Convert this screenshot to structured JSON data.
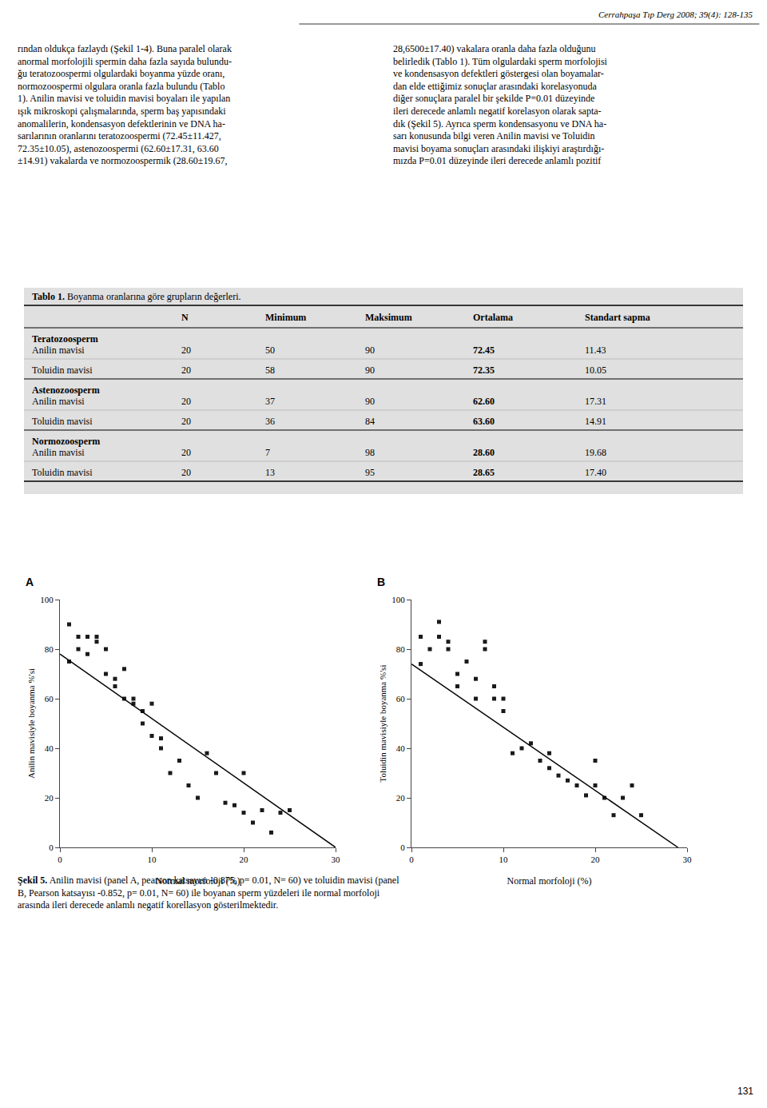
{
  "chart_data": [
    {
      "type": "scatter",
      "title": "A",
      "x_label": "Normal morfoloji (%)",
      "y_label": "Anilin mavisiyle boyanma %'si",
      "xlim": [
        0,
        30
      ],
      "ylim": [
        0,
        100
      ],
      "xticks": [
        0,
        10,
        20,
        30
      ],
      "yticks": [
        0,
        20,
        40,
        60,
        80,
        100
      ],
      "grid": false,
      "series": [
        {
          "type": "scatter",
          "marker": "square",
          "color": "#1a1a1a",
          "x": [
            1,
            1,
            2,
            2,
            3,
            3,
            4,
            4,
            5,
            5,
            6,
            6,
            7,
            7,
            8,
            8,
            9,
            9,
            10,
            10,
            11,
            11,
            12,
            13,
            14,
            15,
            16,
            17,
            18,
            19,
            20,
            20,
            21,
            22,
            23,
            24,
            25
          ],
          "values": [
            75,
            90,
            85,
            80,
            85,
            78,
            85,
            83,
            70,
            80,
            68,
            65,
            72,
            60,
            60,
            58,
            55,
            50,
            45,
            58,
            40,
            44,
            30,
            35,
            25,
            20,
            38,
            30,
            18,
            17,
            14,
            30,
            10,
            15,
            6,
            14,
            15
          ]
        },
        {
          "type": "line",
          "line_style": "solid",
          "color": "#000000",
          "x": [
            0,
            30
          ],
          "values": [
            78,
            0
          ]
        }
      ],
      "annotations": [
        "Cerrahpaşa Tıp Derg 2008; 39(4): 128-135",
        "rından oldukça fazlaydı (Şekil 1-4). Buna paralel olarak\nanormal morfolojili spermin daha fazla sayıda bulundu-\nğu teratozoospermi olgulardaki boyanma yüzde oranı,\nnormozoospermi olgulara oranla fazla bulundu (Tablo\n1). Anilin mavisi ve toluidin mavisi boyaları ile yapılan\nışık mikroskopi çalışmalarında, sperm baş yapısındaki\nanomalilerin, kondensasyon defektlerinin ve DNA ha-\nsarılarının oranlarını teratozoospermi (72.45±11.427,\n72.35±10.05), astenozoospermi (62.60±17.31, 63.60\n±14.91) vakalarda ve normozoospermik (28.60±19.67,",
        "28,6500±17.40) vakalara oranla daha fazla olduğunu\nbelirledik (Tablo 1). Tüm olgulardaki sperm morfolojisi\nve kondensasyon defektleri göstergesi olan boyamalar-\ndan elde ettiğimiz sonuçlar arasındaki korelasyonuda\ndiğer sonuçlara paralel bir şekilde P=0.01 düzeyinde\nileri derecede anlamlı negatif korelasyon olarak sapta-\ndık (Şekil 5). Ayrıca sperm kondensasyonu ve DNA ha-\nsarı konusunda bilgi veren Anilin mavisi ve Toluidin\nmavisi boyama sonuçları arasındaki ilişkiyi araştırdığı-\nmızda P=0.01 düzeyinde ileri derecede anlamlı pozitif",
        [
          "Tablo 1.",
          " Boyanma oranlarına göre grupların değerleri."
        ],
        [
          "N",
          "Minimum",
          "Maksimum",
          "Ortalama",
          "Standart sapma"
        ],
        [
          "Teratozoosperm"
        ],
        [
          "Anilin mavisi",
          "20",
          "50",
          "90",
          "72.45",
          "11.43"
        ],
        [
          "Toluidin mavisi",
          "20",
          "58",
          "90",
          "72.35",
          "10.05"
        ],
        [
          "Astenozoosperm"
        ],
        [
          "Anilin mavisi",
          "20",
          "37",
          "90",
          "62.60",
          "17.31"
        ],
        [
          "Toluidin mavisi",
          "20",
          "36",
          "84",
          "63.60",
          "14.91"
        ],
        [
          "Normozoosperm"
        ],
        [
          "Anilin mavisi",
          "20",
          "7",
          "98",
          "28.60",
          "19.68"
        ],
        [
          "Toluidin mavisi",
          "20",
          "13",
          "95",
          "28.65",
          "17.40"
        ],
        [
          "Şekil 5.",
          " Anilin mavisi (panel A, pearson katsayısı -0.875, p= 0.01, N= 60) ve toluidin mavisi (panel\nB, Pearson katsayısı -0.852, p= 0.01, N= 60) ile boyanan sperm yüzdeleri ile normal morfoloji\narasında ileri derecede anlamlı negatif korellasyon gösterilmektedir."
        ],
        "131"
      ]
    },
    {
      "type": "scatter",
      "title": "B",
      "x_label": "Normal morfoloji (%)",
      "y_label": "Toluidin mavisiyle boyanma %'si",
      "xlim": [
        0,
        30
      ],
      "ylim": [
        0,
        100
      ],
      "xticks": [
        0,
        10,
        20,
        30
      ],
      "yticks": [
        0,
        20,
        40,
        60,
        80,
        100
      ],
      "grid": false,
      "series": [
        {
          "type": "scatter",
          "marker": "square",
          "color": "#1a1a1a",
          "x": [
            1,
            1,
            2,
            3,
            3,
            4,
            4,
            5,
            5,
            6,
            7,
            7,
            8,
            8,
            9,
            9,
            10,
            10,
            11,
            12,
            13,
            14,
            15,
            15,
            16,
            17,
            18,
            19,
            20,
            20,
            21,
            22,
            23,
            24,
            25
          ],
          "values": [
            74,
            85,
            80,
            85,
            91,
            80,
            83,
            70,
            65,
            75,
            68,
            60,
            80,
            83,
            60,
            65,
            55,
            60,
            38,
            40,
            42,
            35,
            32,
            38,
            29,
            27,
            25,
            21,
            25,
            35,
            20,
            13,
            20,
            25,
            13
          ]
        },
        {
          "type": "line",
          "line_style": "solid",
          "color": "#000000",
          "x": [
            0,
            29
          ],
          "values": [
            74,
            0
          ]
        }
      ]
    }
  ]
}
